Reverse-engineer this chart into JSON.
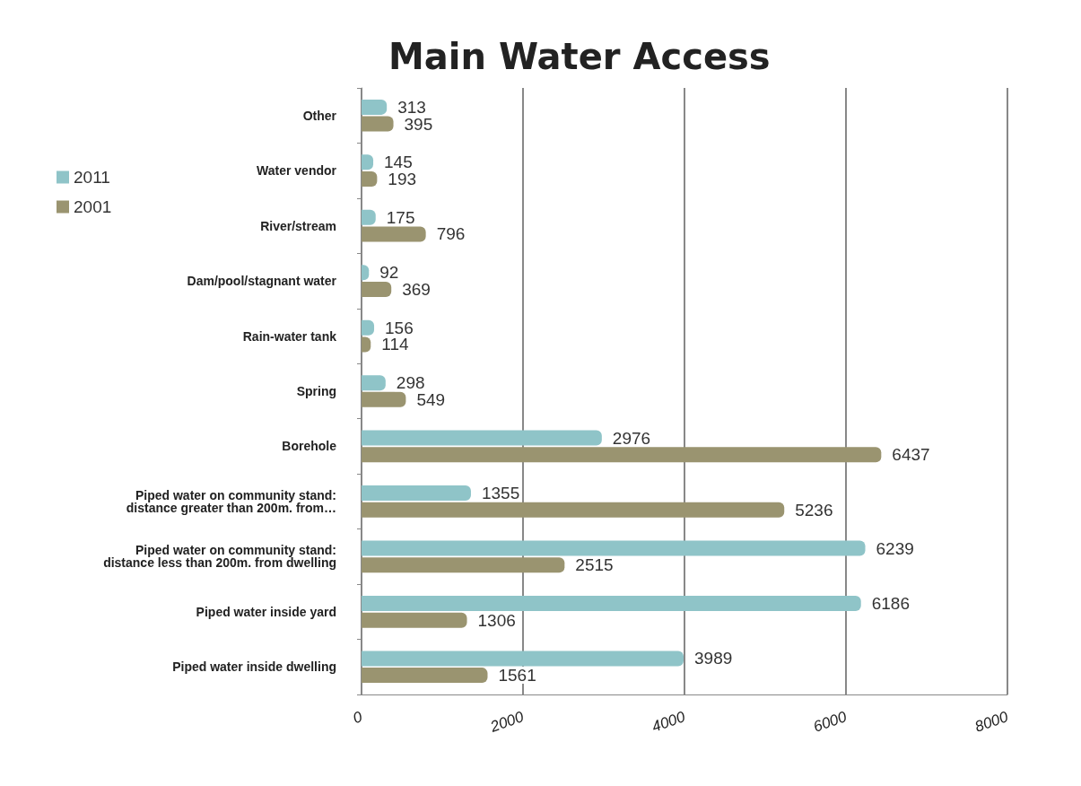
{
  "chart_data": {
    "type": "bar",
    "title": "Main Water Access",
    "orientation": "horizontal",
    "categories": [
      "Other",
      "Water vendor",
      "River/stream",
      "Dam/pool/stagnant water",
      "Rain-water tank",
      "Spring",
      "Borehole",
      "Piped water on community stand:\ndistance greater than 200m. from…",
      "Piped water on community stand:\ndistance less than 200m. from dwelling",
      "Piped water inside yard",
      "Piped water inside dwelling"
    ],
    "series": [
      {
        "name": "2011",
        "color": "#8fc4c8",
        "values": [
          313,
          145,
          175,
          92,
          156,
          298,
          2976,
          1355,
          6239,
          6186,
          3989
        ]
      },
      {
        "name": "2001",
        "color": "#9a9470",
        "values": [
          395,
          193,
          796,
          369,
          114,
          549,
          6437,
          5236,
          2515,
          1306,
          1561
        ]
      }
    ],
    "xlim": [
      0,
      8000
    ],
    "xticks": [
      0,
      2000,
      4000,
      6000,
      8000
    ],
    "grid": "x",
    "legend": "top left",
    "data_labels": true
  }
}
